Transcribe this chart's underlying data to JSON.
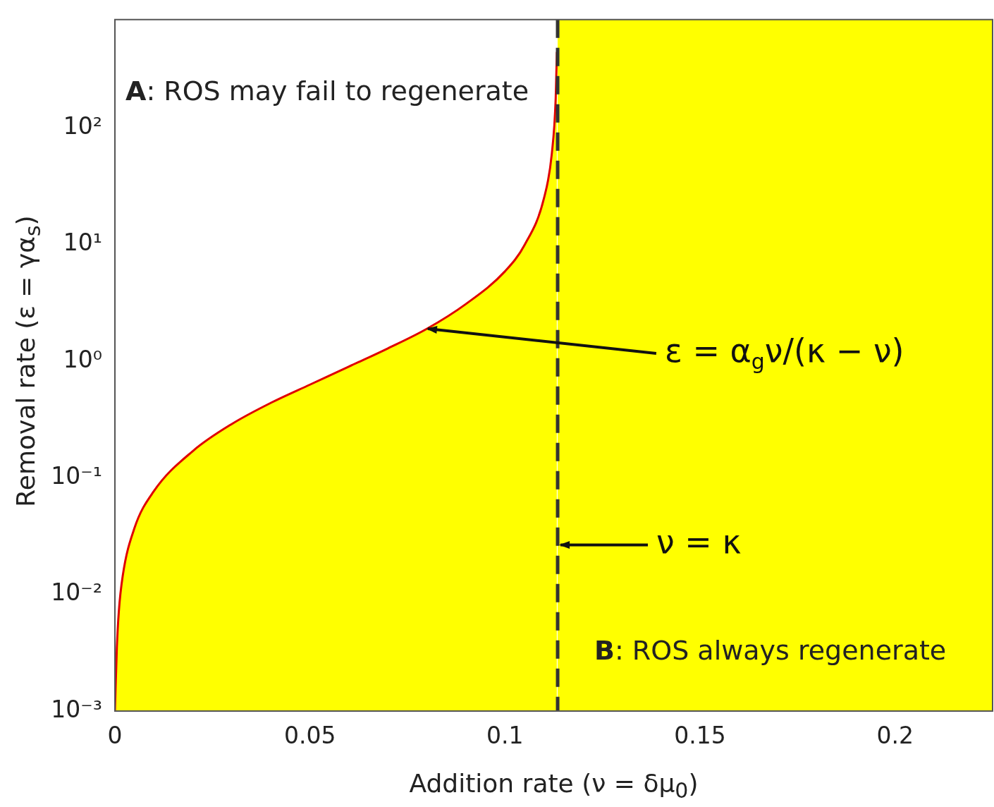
{
  "chart_data": {
    "type": "area",
    "xlabel": "Addition rate (ν = δμ$_{0}$)",
    "ylabel": "Removal rate (ε = γα$_{s}$)",
    "x": [
      0,
      0.0005,
      0.001,
      0.002,
      0.005,
      0.01,
      0.02,
      0.03,
      0.04,
      0.05,
      0.06,
      0.07,
      0.08,
      0.09,
      0.1,
      0.105,
      0.11,
      0.112,
      0.113,
      0.1133
    ],
    "series": [
      {
        "color": "#ffff00",
        "values": [
          0.001,
          0.0035,
          0.0071,
          0.0144,
          0.037,
          0.077,
          0.17,
          0.29,
          0.44,
          0.63,
          0.9,
          1.29,
          1.9,
          3.1,
          5.9,
          9.9,
          25,
          60,
          180,
          450
        ]
      }
    ],
    "log": "y",
    "xlim": [
      0,
      0.225
    ],
    "ylim": [
      0.001,
      850
    ],
    "xticks": [
      0,
      0.05,
      0.1,
      0.15,
      0.2
    ],
    "yticks": [
      {
        "value": 0.001,
        "label": "10⁻³"
      },
      {
        "value": 0.01,
        "label": "10⁻²"
      },
      {
        "value": 0.1,
        "label": "10⁻¹"
      },
      {
        "value": 1,
        "label": "10⁰"
      },
      {
        "value": 10,
        "label": "10¹"
      },
      {
        "value": 100,
        "label": "10²"
      }
    ],
    "bands": [
      {
        "axis": "x",
        "from": 0.1135,
        "to": 0.225,
        "color": "#ffff00"
      }
    ],
    "ref_lines": [
      {
        "axis": "x",
        "value": 0.1135,
        "color": "#333333",
        "line_style": "dashed"
      }
    ],
    "annotations": [
      "A: ROS may fail to regenerate",
      "B: ROS always regenerate",
      {
        "text": "ε = α$_{g}$ν/(κ − ν)",
        "x": 0.0795,
        "y": 1.9
      },
      {
        "text": "ν = κ",
        "x": 0.1135,
        "y": 0.0266
      }
    ],
    "grid": false,
    "legend": false
  }
}
